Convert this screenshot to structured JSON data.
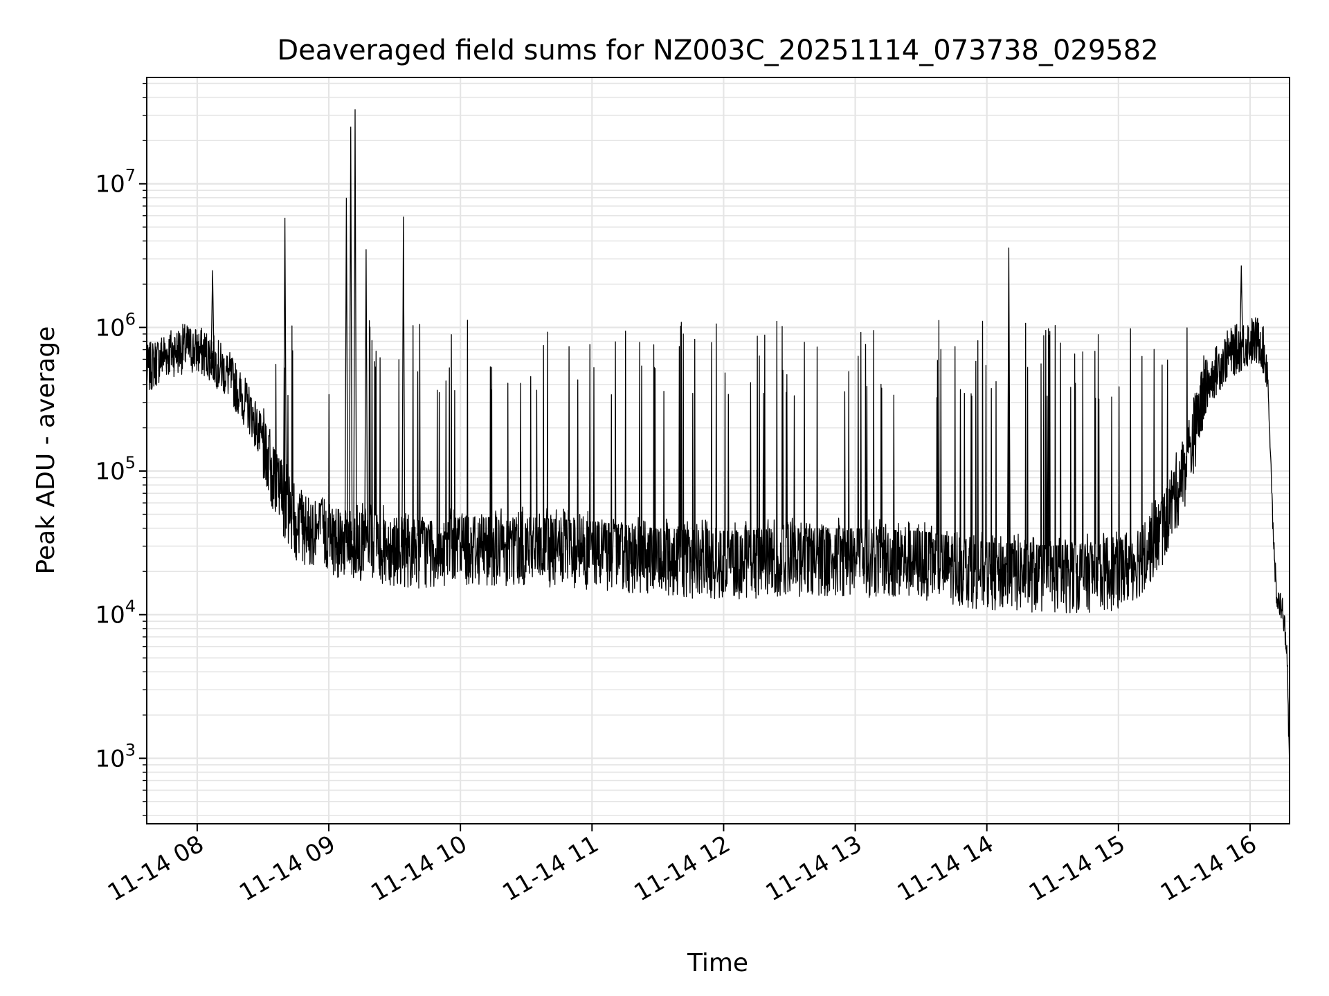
{
  "chart_data": {
    "type": "line",
    "title": "Deaveraged field sums for NZ003C_20251114_073738_029582",
    "xlabel": "Time",
    "ylabel": "Peak ADU - average",
    "yscale": "log",
    "grid": true,
    "line_color": "#000000",
    "grid_color": "#e5e5e5",
    "xlim": [
      "2025-11-14 07:37",
      "2025-11-14 16:18"
    ],
    "ylim": [
      350,
      55000000
    ],
    "xticks": [
      {
        "t": "2025-11-14 08:00",
        "label": "11-14 08"
      },
      {
        "t": "2025-11-14 09:00",
        "label": "11-14 09"
      },
      {
        "t": "2025-11-14 10:00",
        "label": "11-14 10"
      },
      {
        "t": "2025-11-14 11:00",
        "label": "11-14 11"
      },
      {
        "t": "2025-11-14 12:00",
        "label": "11-14 12"
      },
      {
        "t": "2025-11-14 13:00",
        "label": "11-14 13"
      },
      {
        "t": "2025-11-14 14:00",
        "label": "11-14 14"
      },
      {
        "t": "2025-11-14 15:00",
        "label": "11-14 15"
      },
      {
        "t": "2025-11-14 16:00",
        "label": "11-14 16"
      }
    ],
    "yticks": [
      {
        "v": 1000,
        "base": "10",
        "exp": "3"
      },
      {
        "v": 10000,
        "base": "10",
        "exp": "4"
      },
      {
        "v": 100000,
        "base": "10",
        "exp": "5"
      },
      {
        "v": 1000000,
        "base": "10",
        "exp": "6"
      },
      {
        "v": 10000000,
        "base": "10",
        "exp": "7"
      }
    ],
    "series": [
      {
        "x": [
          "2025-11-14 07:37",
          "2025-11-14 07:45",
          "2025-11-14 07:55",
          "2025-11-14 08:05",
          "2025-11-14 08:15",
          "2025-11-14 08:25",
          "2025-11-14 08:35",
          "2025-11-14 08:45",
          "2025-11-14 09:00",
          "2025-11-14 09:15",
          "2025-11-14 09:30",
          "2025-11-14 09:45",
          "2025-11-14 10:00",
          "2025-11-14 10:30",
          "2025-11-14 11:00",
          "2025-11-14 11:30",
          "2025-11-14 12:00",
          "2025-11-14 12:30",
          "2025-11-14 13:00",
          "2025-11-14 13:30",
          "2025-11-14 14:00",
          "2025-11-14 14:30",
          "2025-11-14 15:00",
          "2025-11-14 15:10",
          "2025-11-14 15:20",
          "2025-11-14 15:30",
          "2025-11-14 15:40",
          "2025-11-14 15:50",
          "2025-11-14 16:00",
          "2025-11-14 16:05",
          "2025-11-14 16:08",
          "2025-11-14 16:10",
          "2025-11-14 16:12",
          "2025-11-14 16:15",
          "2025-11-14 16:17",
          "2025-11-14 16:18"
        ],
        "y": [
          500000,
          650000,
          720000,
          650000,
          450000,
          250000,
          90000,
          45000,
          35000,
          32000,
          30000,
          28000,
          30000,
          30000,
          28000,
          25000,
          24000,
          25000,
          25000,
          24000,
          20000,
          19000,
          20000,
          25000,
          40000,
          100000,
          400000,
          650000,
          800000,
          800000,
          500000,
          60000,
          13000,
          11000,
          5000,
          700
        ]
      }
    ]
  }
}
